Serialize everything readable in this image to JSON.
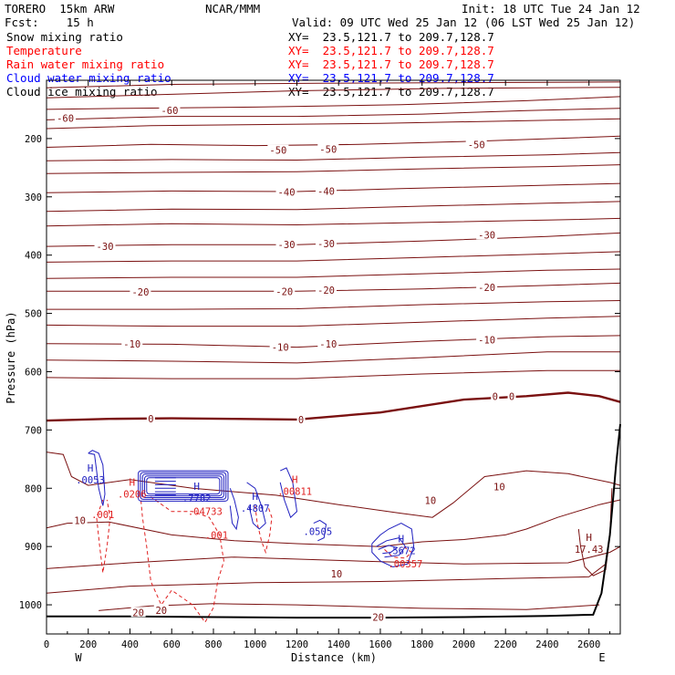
{
  "header": {
    "line1_left": "TORERO  15km ARW",
    "line1_center": "NCAR/MMM",
    "line1_right": "Init: 18 UTC Tue 24 Jan 12",
    "line2_left": "Fcst:    15 h",
    "line2_right": "Valid: 09 UTC Wed 25 Jan 12 (06 LST Wed 25 Jan 12)",
    "fields": [
      {
        "name": "Snow mixing ratio",
        "xy": "XY=  23.5,121.7 to 209.7,128.7",
        "color": "#000000"
      },
      {
        "name": "Temperature",
        "xy": "XY=  23.5,121.7 to 209.7,128.7",
        "color": "#ff0000"
      },
      {
        "name": "Rain water mixing ratio",
        "xy": "XY=  23.5,121.7 to 209.7,128.7",
        "color": "#ff0000"
      },
      {
        "name": "Cloud water mixing ratio",
        "xy": "XY=  23.5,121.7 to 209.7,128.7",
        "color": "#0000ff"
      },
      {
        "name": "Cloud ice mixing ratio",
        "xy": "XY=  23.5,121.7 to 209.7,128.7",
        "color": "#000000"
      }
    ]
  },
  "colors": {
    "temperature": "#7a1010",
    "rain": "#e02020",
    "cloud_water": "#2020c0",
    "terrain": "#000000"
  },
  "chart_data": {
    "type": "line",
    "xlabel": "Distance (km)",
    "ylabel": "Pressure (hPa)",
    "xlim": [
      0,
      2750
    ],
    "ylim": [
      1050,
      100
    ],
    "x_ticks": [
      0,
      200,
      400,
      600,
      800,
      1000,
      1200,
      1400,
      1600,
      1800,
      2000,
      2200,
      2400,
      2600
    ],
    "y_ticks": [
      200,
      300,
      400,
      500,
      600,
      700,
      800,
      900,
      1000
    ],
    "x_end_labels": {
      "left": "W",
      "right": "E"
    },
    "temperature_labels": [
      {
        "x": 90,
        "p": 165,
        "text": "-60"
      },
      {
        "x": 590,
        "p": 152,
        "text": "-60"
      },
      {
        "x": 1110,
        "p": 220,
        "text": "-50"
      },
      {
        "x": 1350,
        "p": 218,
        "text": "-50"
      },
      {
        "x": 2060,
        "p": 210,
        "text": "-50"
      },
      {
        "x": 1150,
        "p": 292,
        "text": "-40"
      },
      {
        "x": 1340,
        "p": 290,
        "text": "-40"
      },
      {
        "x": 280,
        "p": 385,
        "text": "-30"
      },
      {
        "x": 1150,
        "p": 382,
        "text": "-30"
      },
      {
        "x": 1340,
        "p": 380,
        "text": "-30"
      },
      {
        "x": 2110,
        "p": 365,
        "text": "-30"
      },
      {
        "x": 450,
        "p": 463,
        "text": "-20"
      },
      {
        "x": 1140,
        "p": 462,
        "text": "-20"
      },
      {
        "x": 1340,
        "p": 460,
        "text": "-20"
      },
      {
        "x": 2110,
        "p": 455,
        "text": "-20"
      },
      {
        "x": 410,
        "p": 552,
        "text": "-10"
      },
      {
        "x": 1120,
        "p": 558,
        "text": "-10"
      },
      {
        "x": 1350,
        "p": 552,
        "text": "-10"
      },
      {
        "x": 2110,
        "p": 545,
        "text": "-10"
      },
      {
        "x": 500,
        "p": 681,
        "text": "0"
      },
      {
        "x": 1220,
        "p": 682,
        "text": "0"
      },
      {
        "x": 2150,
        "p": 642,
        "text": "0"
      },
      {
        "x": 2230,
        "p": 642,
        "text": "0"
      },
      {
        "x": 2170,
        "p": 797,
        "text": "10"
      },
      {
        "x": 1840,
        "p": 821,
        "text": "10"
      },
      {
        "x": 1390,
        "p": 947,
        "text": "10"
      },
      {
        "x": 160,
        "p": 855,
        "text": "10"
      },
      {
        "x": 440,
        "p": 1013,
        "text": "20"
      },
      {
        "x": 550,
        "p": 1009,
        "text": "20"
      },
      {
        "x": 1590,
        "p": 1021,
        "text": "20"
      }
    ],
    "extrema_labels": [
      {
        "x": 210,
        "p": 778,
        "mark": "H",
        "value": ".0053",
        "color": "cloud_water"
      },
      {
        "x": 410,
        "p": 802,
        "mark": "H",
        "value": ".0206",
        "color": "rain"
      },
      {
        "x": 720,
        "p": 809,
        "mark": "H",
        "value": ".7782",
        "color": "cloud_water"
      },
      {
        "x": 760,
        "p": 832,
        "mark": "",
        "value": ".04733",
        "color": "rain"
      },
      {
        "x": 1000,
        "p": 826,
        "mark": "H",
        "value": ".4807",
        "color": "cloud_water"
      },
      {
        "x": 1190,
        "p": 797,
        "mark": "H",
        "value": ".00811",
        "color": "rain"
      },
      {
        "x": 1700,
        "p": 899,
        "mark": "H",
        "value": ".5672",
        "color": "cloud_water"
      },
      {
        "x": 1720,
        "p": 922,
        "mark": "",
        "value": ".00357",
        "color": "rain"
      },
      {
        "x": 2600,
        "p": 897,
        "mark": "H",
        "value": "17.43",
        "color": "temperature"
      }
    ],
    "rain_labels": [
      {
        "x": 270,
        "p": 845,
        "text": ".001"
      },
      {
        "x": 815,
        "p": 880,
        "text": ".001"
      }
    ],
    "cloud_water_labels": [
      {
        "x": 1300,
        "p": 874,
        "text": ".0505"
      }
    ]
  }
}
